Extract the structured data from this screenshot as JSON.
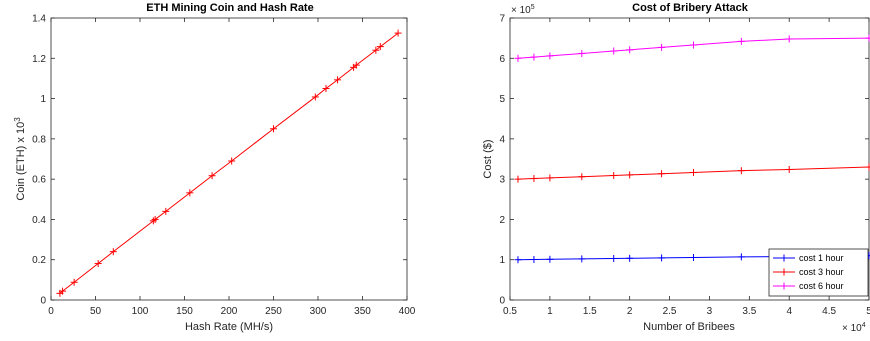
{
  "chart_data": [
    {
      "type": "line",
      "title": "ETH Mining Coin and Hash Rate",
      "xlabel": "Hash Rate (MH/s)",
      "ylabel": "Coin (ETH) x 10",
      "ylabel_exp": "3",
      "xlim": [
        0,
        400
      ],
      "ylim": [
        0,
        1.4
      ],
      "xticks": [
        "0",
        "50",
        "100",
        "150",
        "200",
        "250",
        "300",
        "350",
        "400"
      ],
      "yticks": [
        "0",
        "0.2",
        "0.4",
        "0.6",
        "0.8",
        "1",
        "1.2",
        "1.4"
      ],
      "grid": false,
      "color": "#ff0000",
      "series": [
        {
          "x": [
            10,
            13,
            26,
            53,
            70,
            115,
            117,
            129,
            156,
            181,
            203,
            250,
            297,
            309,
            322,
            340,
            343,
            365,
            370,
            390
          ],
          "y": [
            0.033,
            0.044,
            0.088,
            0.181,
            0.24,
            0.393,
            0.4,
            0.44,
            0.532,
            0.617,
            0.69,
            0.85,
            1.008,
            1.05,
            1.093,
            1.155,
            1.166,
            1.24,
            1.258,
            1.325
          ]
        }
      ]
    },
    {
      "type": "line",
      "title": "Cost of Bribery Attack",
      "xlabel": "Number of Bribees",
      "ylabel": "Cost ($)",
      "xlim": [
        0.5,
        5
      ],
      "ylim": [
        0,
        7
      ],
      "x_exponent": "× 10",
      "x_exponent_power": "4",
      "y_exponent": "× 10",
      "y_exponent_power": "5",
      "xticks": [
        "0.5",
        "1",
        "1.5",
        "2",
        "2.5",
        "3",
        "3.5",
        "4",
        "4.5",
        "5"
      ],
      "yticks": [
        "0",
        "1",
        "2",
        "3",
        "4",
        "5",
        "6",
        "7"
      ],
      "grid": false,
      "legend_position": "bottom-right",
      "x": [
        0.6,
        0.8,
        1.0,
        1.4,
        1.8,
        2.0,
        2.4,
        2.8,
        3.4,
        4.0,
        5.0
      ],
      "series": [
        {
          "name": "cost 1 hour",
          "color": "#0000ff",
          "values": [
            1.0,
            1.005,
            1.01,
            1.02,
            1.03,
            1.035,
            1.045,
            1.055,
            1.07,
            1.08,
            1.1
          ]
        },
        {
          "name": "cost 3 hour",
          "color": "#ff0000",
          "values": [
            3.0,
            3.015,
            3.03,
            3.06,
            3.09,
            3.105,
            3.135,
            3.165,
            3.21,
            3.24,
            3.3
          ]
        },
        {
          "name": "cost 6 hour",
          "color": "#ff00ff",
          "values": [
            6.0,
            6.03,
            6.06,
            6.12,
            6.18,
            6.21,
            6.27,
            6.33,
            6.42,
            6.48,
            6.5
          ]
        }
      ]
    }
  ]
}
